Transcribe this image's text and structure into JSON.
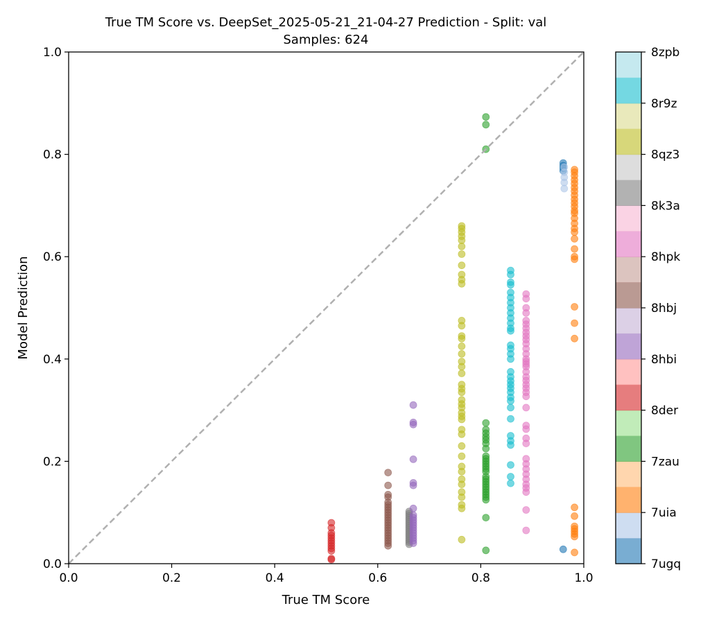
{
  "chart_data": {
    "type": "scatter",
    "title": "True TM Score vs. DeepSet_2025-05-21_21-04-27 Prediction - Split: val",
    "subtitle": "Samples: 624",
    "xlabel": "True TM Score",
    "ylabel": "Model Prediction",
    "xlim": [
      0.0,
      1.0
    ],
    "ylim": [
      0.0,
      1.0
    ],
    "xticks": [
      "0.0",
      "0.2",
      "0.4",
      "0.6",
      "0.8",
      "1.0"
    ],
    "yticks": [
      "0.0",
      "0.2",
      "0.4",
      "0.6",
      "0.8",
      "1.0"
    ],
    "grid": false,
    "reference_line": {
      "style": "dashed",
      "color": "#b0b0b0",
      "from": [
        0,
        0
      ],
      "to": [
        1,
        1
      ]
    },
    "colorbar": {
      "labels": [
        "7ugq",
        "7uia",
        "7zau",
        "8der",
        "8hbi",
        "8hbj",
        "8hpk",
        "8k3a",
        "8qz3",
        "8r9z",
        "8zpb"
      ],
      "colors": [
        "#1f77b4",
        "#aec7e8",
        "#ff7f0e",
        "#ffbb78",
        "#2ca02c",
        "#98df8a",
        "#d62728",
        "#ff9896",
        "#9467bd",
        "#c5b0d5",
        "#8c564b",
        "#c49c94",
        "#e377c2",
        "#f7b6d2",
        "#7f7f7f",
        "#c7c7c7",
        "#bcbd22",
        "#dbdb8d",
        "#17becf",
        "#9edae5"
      ]
    },
    "series": [
      {
        "color": "#d62728",
        "x": 0.51,
        "y": [
          0.08,
          0.07,
          0.06,
          0.055,
          0.05,
          0.045,
          0.04,
          0.035,
          0.03,
          0.025,
          0.01,
          0.008
        ]
      },
      {
        "color": "#8c564b",
        "x": 0.62,
        "y": [
          0.178,
          0.153,
          0.135,
          0.13,
          0.12,
          0.115,
          0.11,
          0.105,
          0.1,
          0.095,
          0.09,
          0.085,
          0.08,
          0.075,
          0.07,
          0.065,
          0.06,
          0.055,
          0.05,
          0.045,
          0.04,
          0.035
        ]
      },
      {
        "color": "#7f7f7f",
        "x": 0.661,
        "y": [
          0.102,
          0.098,
          0.094,
          0.09,
          0.086,
          0.082,
          0.078,
          0.074,
          0.07,
          0.066,
          0.062,
          0.058,
          0.054,
          0.05,
          0.046,
          0.042,
          0.038
        ]
      },
      {
        "color": "#9467bd",
        "x": 0.669,
        "y": [
          0.31,
          0.276,
          0.272,
          0.204,
          0.158,
          0.153,
          0.108,
          0.095,
          0.09,
          0.085,
          0.08,
          0.075,
          0.07,
          0.065,
          0.06,
          0.055,
          0.05,
          0.045,
          0.04
        ]
      },
      {
        "color": "#bcbd22",
        "x": 0.763,
        "y": [
          0.66,
          0.655,
          0.648,
          0.64,
          0.632,
          0.62,
          0.605,
          0.583,
          0.565,
          0.555,
          0.547,
          0.475,
          0.465,
          0.445,
          0.44,
          0.425,
          0.41,
          0.395,
          0.385,
          0.372,
          0.35,
          0.342,
          0.335,
          0.32,
          0.312,
          0.305,
          0.295,
          0.288,
          0.282,
          0.262,
          0.253,
          0.23,
          0.21,
          0.19,
          0.18,
          0.165,
          0.155,
          0.14,
          0.13,
          0.115,
          0.108,
          0.047
        ]
      },
      {
        "color": "#2ca02c",
        "x": 0.81,
        "y": [
          0.873,
          0.858,
          0.81,
          0.275,
          0.262,
          0.255,
          0.248,
          0.242,
          0.235,
          0.225,
          0.21,
          0.205,
          0.2,
          0.195,
          0.19,
          0.185,
          0.18,
          0.17,
          0.165,
          0.16,
          0.155,
          0.15,
          0.145,
          0.14,
          0.135,
          0.13,
          0.125,
          0.09,
          0.026
        ]
      },
      {
        "color": "#17becf",
        "x": 0.858,
        "y": [
          0.573,
          0.565,
          0.55,
          0.545,
          0.53,
          0.52,
          0.51,
          0.5,
          0.49,
          0.48,
          0.47,
          0.46,
          0.455,
          0.427,
          0.42,
          0.41,
          0.4,
          0.375,
          0.365,
          0.357,
          0.35,
          0.343,
          0.335,
          0.325,
          0.318,
          0.305,
          0.283,
          0.25,
          0.24,
          0.232,
          0.193,
          0.17,
          0.157
        ]
      },
      {
        "color": "#e377c2",
        "x": 0.888,
        "y": [
          0.527,
          0.518,
          0.5,
          0.49,
          0.475,
          0.468,
          0.46,
          0.452,
          0.445,
          0.438,
          0.43,
          0.42,
          0.41,
          0.4,
          0.395,
          0.39,
          0.385,
          0.375,
          0.365,
          0.358,
          0.35,
          0.343,
          0.335,
          0.327,
          0.305,
          0.27,
          0.263,
          0.245,
          0.235,
          0.205,
          0.195,
          0.185,
          0.175,
          0.165,
          0.155,
          0.148,
          0.14,
          0.105,
          0.065
        ]
      },
      {
        "color": "#1f77b4",
        "x": 0.96,
        "y": [
          0.783,
          0.778,
          0.773,
          0.768,
          0.028
        ]
      },
      {
        "color": "#aec7e8",
        "x": 0.962,
        "y": [
          0.775,
          0.765,
          0.755,
          0.745,
          0.733
        ]
      },
      {
        "color": "#ff7f0e",
        "x": 0.982,
        "y": [
          0.77,
          0.765,
          0.758,
          0.75,
          0.743,
          0.735,
          0.728,
          0.72,
          0.712,
          0.705,
          0.698,
          0.69,
          0.685,
          0.675,
          0.665,
          0.655,
          0.648,
          0.635,
          0.615,
          0.6,
          0.595,
          0.502,
          0.47,
          0.44,
          0.11,
          0.093,
          0.073,
          0.068,
          0.063,
          0.058,
          0.053,
          0.022
        ]
      }
    ]
  }
}
